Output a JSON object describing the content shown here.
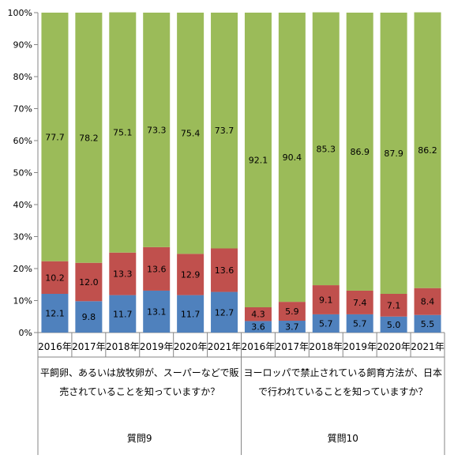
{
  "chart_data": {
    "type": "bar",
    "stacked": true,
    "percent_stacked": true,
    "ylim": [
      0,
      100
    ],
    "ytick_step": 10,
    "ytick_suffix": "%",
    "grid": false,
    "legend": "none",
    "categories": [
      "2016年",
      "2017年",
      "2018年",
      "2019年",
      "2020年",
      "2021年",
      "2016年",
      "2017年",
      "2018年",
      "2019年",
      "2020年",
      "2021年"
    ],
    "series": [
      {
        "color": "#4f81bd",
        "values": [
          12.1,
          9.8,
          11.7,
          13.1,
          11.7,
          12.7,
          3.6,
          3.7,
          5.7,
          5.7,
          5.0,
          5.5
        ]
      },
      {
        "color": "#c0504d",
        "values": [
          10.2,
          12.0,
          13.3,
          13.6,
          12.9,
          13.6,
          4.3,
          5.9,
          9.1,
          7.4,
          7.1,
          8.4
        ]
      },
      {
        "color": "#9bbb59",
        "values": [
          77.7,
          78.2,
          75.1,
          73.3,
          75.4,
          73.7,
          92.1,
          90.4,
          85.3,
          86.9,
          87.9,
          86.2
        ]
      }
    ],
    "groups": [
      {
        "label": "質問9",
        "question_lines": [
          "平飼卵、あるいは放牧卵が、スーパーなどで販",
          "売されていることを知っていますか？"
        ]
      },
      {
        "label": "質問10",
        "question_lines": [
          "ヨーロッパで禁止されている飼育方法が、日本",
          "で行われていることを知っていますか？"
        ]
      }
    ]
  }
}
